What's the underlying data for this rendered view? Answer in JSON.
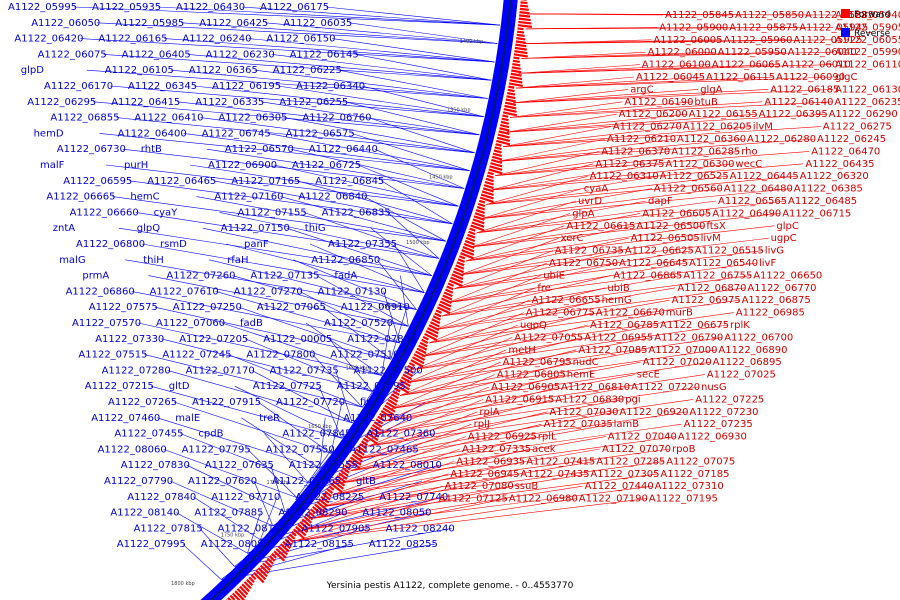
{
  "caption": "Yersinia pestis A1122, complete genome. - 0..4553770",
  "legend": [
    {
      "label": "Forward",
      "color": "#ff0000"
    },
    {
      "label": "Reverse",
      "color": "#0000ff"
    }
  ],
  "colors": {
    "forward": "#ff0000",
    "reverse": "#0000ff",
    "text_forward": "#cc0000",
    "text_reverse": "#0000cc"
  },
  "ticks": [
    "1400 kbp",
    "1350 kbp",
    "1450 kbp",
    "1500 kbp",
    "1550 kbp",
    "1600 kbp",
    "1650 kbp",
    "1700 kbp",
    "1750 kbp",
    "1800 kbp"
  ],
  "reverse_labels": [
    "A1122_05995",
    "A1122_05935",
    "A1122_06430",
    "A1122_06175",
    "A1122_06050",
    "A1122_05985",
    "A1122_06425",
    "A1122_06035",
    "A1122_06420",
    "A1122_06165",
    "A1122_06240",
    "A1122_06150",
    "A1122_06075",
    "A1122_06405",
    "A1122_06230",
    "A1122_06145",
    "glpD",
    "A1122_06105",
    "A1122_06365",
    "A1122_06225",
    "A1122_06170",
    "A1122_06345",
    "A1122_06195",
    "A1122_06340",
    "A1122_06295",
    "A1122_06415",
    "A1122_06335",
    "A1122_06255",
    "A1122_06855",
    "A1122_06410",
    "A1122_06305",
    "A1122_06760",
    "hemD",
    "A1122_06400",
    "A1122_06745",
    "A1122_06575",
    "A1122_06730",
    "rhtB",
    "A1122_06570",
    "A1122_06440",
    "malF",
    "purH",
    "A1122_06900",
    "A1122_06725",
    "A1122_06595",
    "A1122_06465",
    "A1122_07165",
    "A1122_06845",
    "A1122_06665",
    "hemC",
    "A1122_07160",
    "A1122_06840",
    "A1122_06660",
    "cyaY",
    "A1122_07155",
    "A1122_06835",
    "zntA",
    "glpQ",
    "A1122_07150",
    "thiG",
    "A1122_06800",
    "rsmD",
    "panF",
    "A1122_07355",
    "malG",
    "thiH",
    "rfaH",
    "A1122_06850",
    "prmA",
    "A1122_07260",
    "A1122_07135",
    "fadA",
    "A1122_06860",
    "A1122_07610",
    "A1122_07270",
    "A1122_07130",
    "A1122_07575",
    "A1122_07250",
    "A1122_07065",
    "A1122_06910",
    "A1122_07570",
    "A1122_07060",
    "fadB",
    "A1122_07520",
    "A1122_07330",
    "A1122_07205",
    "A1122_00005",
    "A1122_07805",
    "A1122_07515",
    "A1122_07245",
    "A1122_07800",
    "A1122_07510",
    "A1122_07280",
    "A1122_07170",
    "A1122_07735",
    "A1122_07500",
    "A1122_07215",
    "gltD",
    "A1122_07725",
    "A1122_07495",
    "A1122_07265",
    "A1122_07915",
    "A1122_07720",
    "fis",
    "A1122_07460",
    "malE",
    "treR",
    "A1122_07640",
    "A1122_07455",
    "cpdB",
    "A1122_07845",
    "A1122_07360",
    "A1122_08060",
    "A1122_07795",
    "A1122_07550",
    "A1122_07465",
    "A1122_07830",
    "A1122_07635",
    "A1122_07555",
    "A1122_08010",
    "A1122_07790",
    "A1122_07620",
    "A1122_08165",
    "gltB",
    "A1122_07840",
    "A1122_07710",
    "A1122_08225",
    "A1122_07740",
    "A1122_08140",
    "A1122_07885",
    "A1122_08290",
    "A1122_08050",
    "A1122_07815",
    "A1122_08145",
    "A1122_07905",
    "A1122_08240",
    "A1122_07995",
    "A1122_08085",
    "A1122_08155",
    "A1122_08255"
  ],
  "forward_labels": [
    "A1122_05845",
    "A1122_05850",
    "A1122_05885",
    "A1122_05940",
    "A1122_05900",
    "A1122_05875",
    "A1122_05945",
    "A1122_05905",
    "A1122_06005",
    "A1122_05960",
    "A1122_05925",
    "A1122_06055",
    "A1122_06000",
    "A1122_05950",
    "A1122_06040",
    "A1122_05990",
    "A1122_06100",
    "A1122_06065",
    "A1122_06010",
    "A1122_06110",
    "A1122_06045",
    "A1122_06115",
    "A1122_06090",
    "glgC",
    "argC",
    "glgA",
    "A1122_06185",
    "A1122_06130",
    "A1122_06190",
    "btuB",
    "A1122_06140",
    "A1122_06235",
    "A1122_06200",
    "A1122_06155",
    "A1122_06395",
    "A1122_06290",
    "A1122_06270",
    "A1122_06205",
    "ilvM",
    "A1122_06275",
    "A1122_06210",
    "A1122_06360",
    "A1122_06280",
    "A1122_06245",
    "A1122_06370",
    "A1122_06285",
    "rho",
    "A1122_06470",
    "A1122_06375",
    "A1122_06300",
    "wecC",
    "A1122_06435",
    "A1122_06310",
    "A1122_06525",
    "A1122_06445",
    "A1122_06320",
    "cyaA",
    "A1122_06560",
    "A1122_06480",
    "A1122_06385",
    "uvrD",
    "dapF",
    "A1122_06565",
    "A1122_06485",
    "glpA",
    "A1122_06605",
    "A1122_06490",
    "A1122_06715",
    "A1122_06615",
    "A1122_06500",
    "ftsX",
    "glpC",
    "xerC",
    "A1122_06505",
    "livM",
    "ugpC",
    "A1122_06735",
    "A1122_06625",
    "A1122_06515",
    "livG",
    "A1122_06750",
    "A1122_06645",
    "A1122_06540",
    "livF",
    "ubiE",
    "A1122_06865",
    "A1122_06755",
    "A1122_06650",
    "fre",
    "ubiB",
    "A1122_06870",
    "A1122_06770",
    "A1122_06655",
    "hemG",
    "A1122_06975",
    "A1122_06875",
    "A1122_06775",
    "A1122_06670",
    "murB",
    "A1122_06985",
    "ugpQ",
    "A1122_06785",
    "A1122_06675",
    "rplK",
    "A1122_07055",
    "A1122_06955",
    "A1122_06790",
    "A1122_06700",
    "metH",
    "A1122_07085",
    "A1122_07000",
    "A1122_06890",
    "A1122_06795",
    "nudC",
    "A1122_07020",
    "A1122_06895",
    "A1122_06805",
    "hemE",
    "secE",
    "A1122_07025",
    "A1122_06905",
    "A1122_06810",
    "A1122_07220",
    "nusG",
    "A1122_06915",
    "A1122_06830",
    "pgi",
    "A1122_07225",
    "rplA",
    "A1122_07030",
    "A1122_06920",
    "A1122_07230",
    "rplJ",
    "A1122_07035",
    "lamB",
    "A1122_07235",
    "A1122_06925",
    "rplL",
    "A1122_07040",
    "A1122_06930",
    "A1122_07335",
    "acek",
    "A1122_07070",
    "rpoB",
    "A1122_06935",
    "A1122_07415",
    "A1122_07285",
    "A1122_07075",
    "A1122_06945",
    "A1122_07435",
    "A1122_07305",
    "A1122_07185",
    "A1122_07080",
    "ssuB",
    "A1122_07440",
    "A1122_07310",
    "A1122_07125",
    "A1122_06980",
    "A1122_07190",
    "A1122_07195"
  ]
}
